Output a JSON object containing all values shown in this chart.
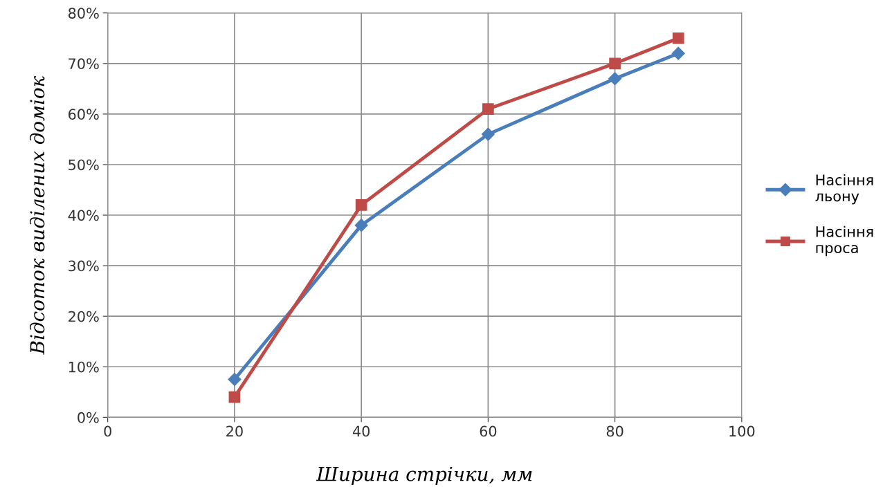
{
  "chart_data": {
    "type": "line",
    "xlabel": "Ширина стрічки, мм",
    "ylabel": "Відсоток виділених доміок",
    "xlim": [
      0,
      100
    ],
    "xticks": [
      0,
      20,
      40,
      60,
      80,
      100
    ],
    "ylim": [
      0,
      80
    ],
    "yticks": [
      {
        "value": 0,
        "label": "0%"
      },
      {
        "value": 10,
        "label": "10%"
      },
      {
        "value": 20,
        "label": "20%"
      },
      {
        "value": 30,
        "label": "30%"
      },
      {
        "value": 40,
        "label": "40%"
      },
      {
        "value": 50,
        "label": "50%"
      },
      {
        "value": 60,
        "label": "60%"
      },
      {
        "value": 70,
        "label": "70%"
      },
      {
        "value": 80,
        "label": "80%"
      }
    ],
    "x": [
      20,
      40,
      60,
      80,
      90
    ],
    "series": [
      {
        "name": "Насіння льону",
        "color": "#4a7ebb",
        "marker": "diamond",
        "values": [
          7.5,
          38,
          56,
          67,
          72
        ]
      },
      {
        "name": "Насіння проса",
        "color": "#be4b48",
        "marker": "square",
        "values": [
          4,
          42,
          61,
          70,
          75
        ]
      }
    ],
    "grid": true,
    "legend": "right",
    "line_style": "solid"
  }
}
